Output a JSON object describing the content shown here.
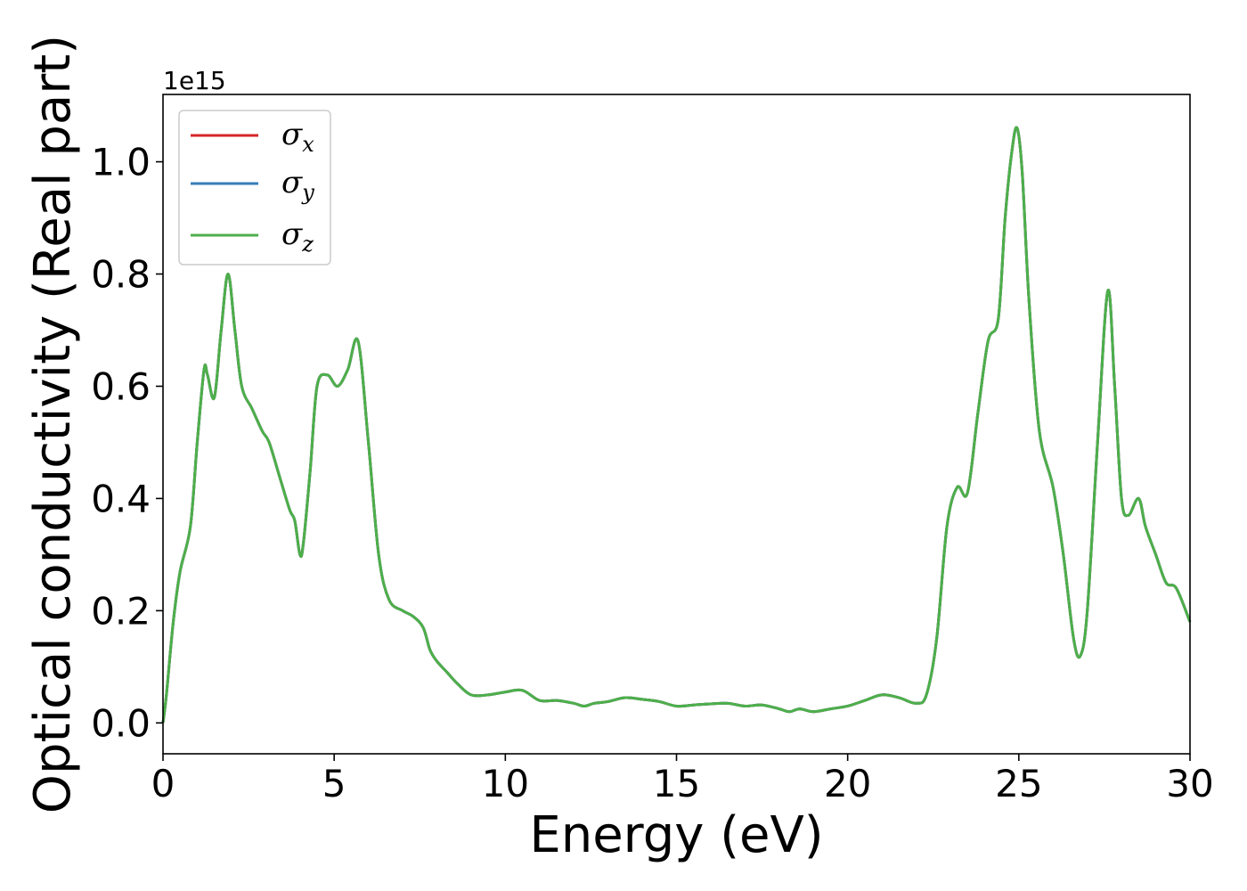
{
  "chart_data": {
    "type": "line",
    "title": "",
    "xlabel": "Energy (eV)",
    "ylabel": "Optical conductivity (Real part)",
    "y_offset_text": "1e15",
    "xlim": [
      0,
      30
    ],
    "ylim": [
      -0.055,
      1.12
    ],
    "x_ticks": [
      0,
      5,
      10,
      15,
      20,
      25,
      30
    ],
    "x_tick_labels": [
      "0",
      "5",
      "10",
      "15",
      "20",
      "25",
      "30"
    ],
    "y_ticks": [
      0.0,
      0.2,
      0.4,
      0.6,
      0.8,
      1.0
    ],
    "y_tick_labels": [
      "0.0",
      "0.2",
      "0.4",
      "0.6",
      "0.8",
      "1.0"
    ],
    "grid": false,
    "legend_position": "top-left",
    "series": [
      {
        "name": "σx",
        "symbol": "σ",
        "subscript": "x",
        "color": "#d62728",
        "x": [
          0,
          0.1,
          0.3,
          0.5,
          0.8,
          1.0,
          1.2,
          1.3,
          1.5,
          1.7,
          1.9,
          2.1,
          2.3,
          2.6,
          2.9,
          3.1,
          3.4,
          3.7,
          3.85,
          4.0,
          4.1,
          4.3,
          4.5,
          4.8,
          5.1,
          5.4,
          5.7,
          6.0,
          6.3,
          6.6,
          7.0,
          7.3,
          7.6,
          7.8,
          8.0,
          8.3,
          8.6,
          9.0,
          9.5,
          10.0,
          10.5,
          11.0,
          11.5,
          12.0,
          12.3,
          12.6,
          13.0,
          13.5,
          14.0,
          14.5,
          15.0,
          15.5,
          16.0,
          16.5,
          17.0,
          17.5,
          18.0,
          18.3,
          18.6,
          19.0,
          19.5,
          20.0,
          20.5,
          21.0,
          21.5,
          22.0,
          22.3,
          22.6,
          22.9,
          23.2,
          23.5,
          23.8,
          24.1,
          24.4,
          24.6,
          24.8,
          24.95,
          25.1,
          25.3,
          25.6,
          26.0,
          26.3,
          26.6,
          26.8,
          27.0,
          27.3,
          27.6,
          27.8,
          28.0,
          28.2,
          28.5,
          28.7,
          29.0,
          29.3,
          29.6,
          30.0
        ],
        "y": [
          0.0,
          0.05,
          0.18,
          0.27,
          0.35,
          0.5,
          0.63,
          0.62,
          0.58,
          0.7,
          0.8,
          0.7,
          0.6,
          0.56,
          0.52,
          0.5,
          0.44,
          0.38,
          0.36,
          0.3,
          0.32,
          0.45,
          0.6,
          0.62,
          0.6,
          0.63,
          0.68,
          0.5,
          0.3,
          0.22,
          0.2,
          0.19,
          0.17,
          0.13,
          0.11,
          0.09,
          0.07,
          0.05,
          0.05,
          0.055,
          0.058,
          0.04,
          0.04,
          0.035,
          0.03,
          0.035,
          0.038,
          0.045,
          0.042,
          0.038,
          0.03,
          0.032,
          0.034,
          0.035,
          0.03,
          0.032,
          0.025,
          0.02,
          0.025,
          0.02,
          0.025,
          0.03,
          0.04,
          0.05,
          0.045,
          0.035,
          0.05,
          0.15,
          0.35,
          0.42,
          0.41,
          0.55,
          0.68,
          0.72,
          0.9,
          1.02,
          1.06,
          0.98,
          0.75,
          0.52,
          0.42,
          0.3,
          0.15,
          0.12,
          0.2,
          0.5,
          0.77,
          0.6,
          0.4,
          0.37,
          0.4,
          0.35,
          0.3,
          0.25,
          0.24,
          0.18
        ]
      },
      {
        "name": "σy",
        "symbol": "σ",
        "subscript": "y",
        "color": "#377eb8",
        "x": [
          0,
          0.1,
          0.3,
          0.5,
          0.8,
          1.0,
          1.2,
          1.3,
          1.5,
          1.7,
          1.9,
          2.1,
          2.3,
          2.6,
          2.9,
          3.1,
          3.4,
          3.7,
          3.85,
          4.0,
          4.1,
          4.3,
          4.5,
          4.8,
          5.1,
          5.4,
          5.7,
          6.0,
          6.3,
          6.6,
          7.0,
          7.3,
          7.6,
          7.8,
          8.0,
          8.3,
          8.6,
          9.0,
          9.5,
          10.0,
          10.5,
          11.0,
          11.5,
          12.0,
          12.3,
          12.6,
          13.0,
          13.5,
          14.0,
          14.5,
          15.0,
          15.5,
          16.0,
          16.5,
          17.0,
          17.5,
          18.0,
          18.3,
          18.6,
          19.0,
          19.5,
          20.0,
          20.5,
          21.0,
          21.5,
          22.0,
          22.3,
          22.6,
          22.9,
          23.2,
          23.5,
          23.8,
          24.1,
          24.4,
          24.6,
          24.8,
          24.95,
          25.1,
          25.3,
          25.6,
          26.0,
          26.3,
          26.6,
          26.8,
          27.0,
          27.3,
          27.6,
          27.8,
          28.0,
          28.2,
          28.5,
          28.7,
          29.0,
          29.3,
          29.6,
          30.0
        ],
        "y": [
          0.0,
          0.05,
          0.18,
          0.27,
          0.35,
          0.5,
          0.63,
          0.62,
          0.58,
          0.7,
          0.8,
          0.7,
          0.6,
          0.56,
          0.52,
          0.5,
          0.44,
          0.38,
          0.36,
          0.3,
          0.32,
          0.45,
          0.6,
          0.62,
          0.6,
          0.63,
          0.68,
          0.5,
          0.3,
          0.22,
          0.2,
          0.19,
          0.17,
          0.13,
          0.11,
          0.09,
          0.07,
          0.05,
          0.05,
          0.055,
          0.058,
          0.04,
          0.04,
          0.035,
          0.03,
          0.035,
          0.038,
          0.045,
          0.042,
          0.038,
          0.03,
          0.032,
          0.034,
          0.035,
          0.03,
          0.032,
          0.025,
          0.02,
          0.025,
          0.02,
          0.025,
          0.03,
          0.04,
          0.05,
          0.045,
          0.035,
          0.05,
          0.15,
          0.35,
          0.42,
          0.41,
          0.55,
          0.68,
          0.72,
          0.9,
          1.02,
          1.06,
          0.98,
          0.75,
          0.52,
          0.42,
          0.3,
          0.15,
          0.12,
          0.2,
          0.5,
          0.77,
          0.6,
          0.4,
          0.37,
          0.4,
          0.35,
          0.3,
          0.25,
          0.24,
          0.18
        ]
      },
      {
        "name": "σz",
        "symbol": "σ",
        "subscript": "z",
        "color": "#4daf4a",
        "x": [
          0,
          0.1,
          0.3,
          0.5,
          0.8,
          1.0,
          1.2,
          1.3,
          1.5,
          1.7,
          1.9,
          2.1,
          2.3,
          2.6,
          2.9,
          3.1,
          3.4,
          3.7,
          3.85,
          4.0,
          4.1,
          4.3,
          4.5,
          4.8,
          5.1,
          5.4,
          5.7,
          6.0,
          6.3,
          6.6,
          7.0,
          7.3,
          7.6,
          7.8,
          8.0,
          8.3,
          8.6,
          9.0,
          9.5,
          10.0,
          10.5,
          11.0,
          11.5,
          12.0,
          12.3,
          12.6,
          13.0,
          13.5,
          14.0,
          14.5,
          15.0,
          15.5,
          16.0,
          16.5,
          17.0,
          17.5,
          18.0,
          18.3,
          18.6,
          19.0,
          19.5,
          20.0,
          20.5,
          21.0,
          21.5,
          22.0,
          22.3,
          22.6,
          22.9,
          23.2,
          23.5,
          23.8,
          24.1,
          24.4,
          24.6,
          24.8,
          24.95,
          25.1,
          25.3,
          25.6,
          26.0,
          26.3,
          26.6,
          26.8,
          27.0,
          27.3,
          27.6,
          27.8,
          28.0,
          28.2,
          28.5,
          28.7,
          29.0,
          29.3,
          29.6,
          30.0
        ],
        "y": [
          0.0,
          0.05,
          0.18,
          0.27,
          0.35,
          0.5,
          0.63,
          0.62,
          0.58,
          0.7,
          0.8,
          0.7,
          0.6,
          0.56,
          0.52,
          0.5,
          0.44,
          0.38,
          0.36,
          0.3,
          0.32,
          0.45,
          0.6,
          0.62,
          0.6,
          0.63,
          0.68,
          0.5,
          0.3,
          0.22,
          0.2,
          0.19,
          0.17,
          0.13,
          0.11,
          0.09,
          0.07,
          0.05,
          0.05,
          0.055,
          0.058,
          0.04,
          0.04,
          0.035,
          0.03,
          0.035,
          0.038,
          0.045,
          0.042,
          0.038,
          0.03,
          0.032,
          0.034,
          0.035,
          0.03,
          0.032,
          0.025,
          0.02,
          0.025,
          0.02,
          0.025,
          0.03,
          0.04,
          0.05,
          0.045,
          0.035,
          0.05,
          0.15,
          0.35,
          0.42,
          0.41,
          0.55,
          0.68,
          0.72,
          0.9,
          1.02,
          1.06,
          0.98,
          0.75,
          0.52,
          0.42,
          0.3,
          0.15,
          0.12,
          0.2,
          0.5,
          0.77,
          0.6,
          0.4,
          0.37,
          0.4,
          0.35,
          0.3,
          0.25,
          0.24,
          0.18
        ]
      }
    ]
  }
}
